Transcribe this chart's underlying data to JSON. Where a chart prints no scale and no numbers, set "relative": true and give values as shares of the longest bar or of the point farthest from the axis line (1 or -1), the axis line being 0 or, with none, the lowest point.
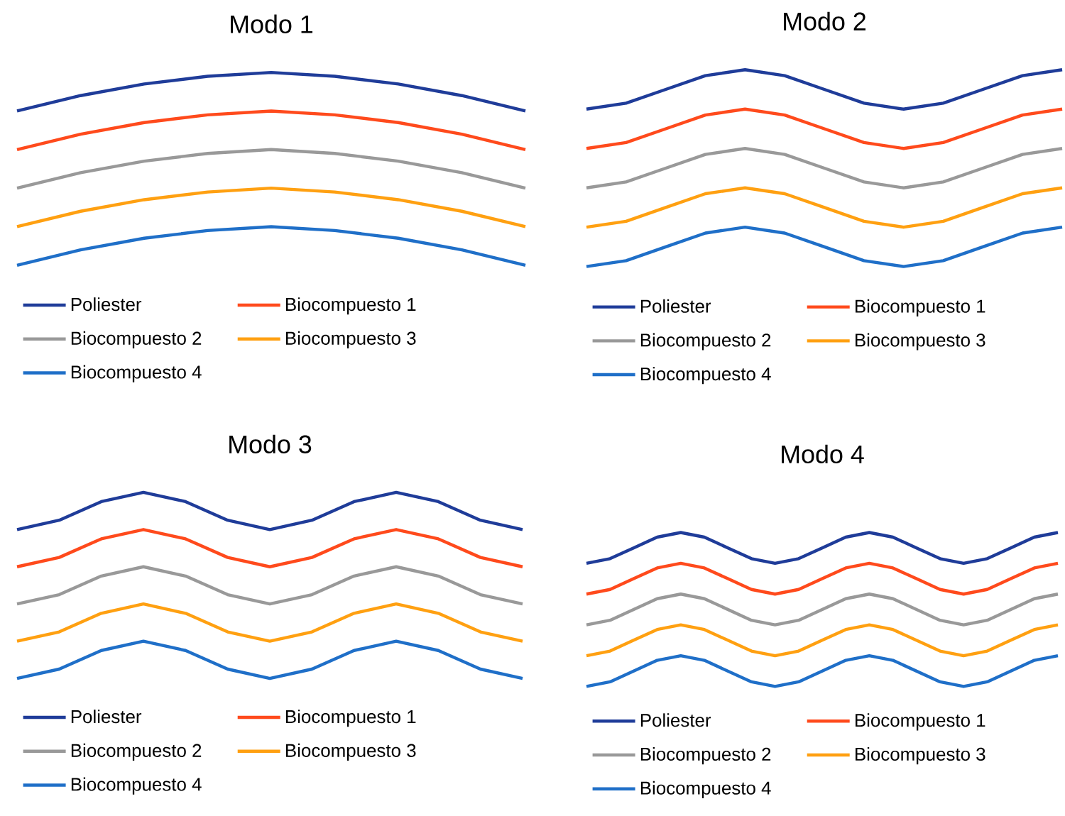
{
  "chart_data": [
    {
      "type": "line",
      "title": "Modo 1",
      "relative": true,
      "legend": "bottom",
      "categories": [
        null,
        null,
        null,
        null,
        null,
        null,
        null,
        null,
        null
      ],
      "series": [
        {
          "name": "Poliester",
          "color": "#1f3c99",
          "values": [
            0.8,
            0.88,
            0.94,
            0.98,
            1,
            0.98,
            0.94,
            0.88,
            0.8
          ]
        },
        {
          "name": "Biocompuesto 1",
          "color": "#ff4a1c",
          "values": [
            0.6,
            0.68,
            0.74,
            0.78,
            0.8,
            0.78,
            0.74,
            0.68,
            0.6
          ]
        },
        {
          "name": "Biocompuesto 2",
          "color": "#999999",
          "values": [
            0.4,
            0.48,
            0.54,
            0.58,
            0.6,
            0.58,
            0.54,
            0.48,
            0.4
          ]
        },
        {
          "name": "Biocompuesto 3",
          "color": "#ffa011",
          "values": [
            0.2,
            0.28,
            0.34,
            0.38,
            0.4,
            0.38,
            0.34,
            0.28,
            0.2
          ]
        },
        {
          "name": "Biocompuesto 4",
          "color": "#1f6fc8",
          "values": [
            0,
            0.08,
            0.14,
            0.18,
            0.2,
            0.18,
            0.14,
            0.08,
            0
          ]
        }
      ]
    },
    {
      "type": "line",
      "title": "Modo 2",
      "relative": true,
      "legend": "bottom",
      "categories": [
        null,
        null,
        null,
        null,
        null,
        null,
        null,
        null,
        null,
        null,
        null,
        null,
        null
      ],
      "series": [
        {
          "name": "Poliester",
          "color": "#1f3c99",
          "values": [
            0.8,
            0.83,
            0.9,
            0.97,
            1,
            0.97,
            0.9,
            0.83,
            0.8,
            0.83,
            0.9,
            0.97,
            1
          ]
        },
        {
          "name": "Biocompuesto 1",
          "color": "#ff4a1c",
          "values": [
            0.6,
            0.63,
            0.7,
            0.77,
            0.8,
            0.77,
            0.7,
            0.63,
            0.6,
            0.63,
            0.7,
            0.77,
            0.8
          ]
        },
        {
          "name": "Biocompuesto 2",
          "color": "#999999",
          "values": [
            0.4,
            0.43,
            0.5,
            0.57,
            0.6,
            0.57,
            0.5,
            0.43,
            0.4,
            0.43,
            0.5,
            0.57,
            0.6
          ]
        },
        {
          "name": "Biocompuesto 3",
          "color": "#ffa011",
          "values": [
            0.2,
            0.23,
            0.3,
            0.37,
            0.4,
            0.37,
            0.3,
            0.23,
            0.2,
            0.23,
            0.3,
            0.37,
            0.4
          ]
        },
        {
          "name": "Biocompuesto 4",
          "color": "#1f6fc8",
          "values": [
            0,
            0.03,
            0.1,
            0.17,
            0.2,
            0.17,
            0.1,
            0.03,
            0,
            0.03,
            0.1,
            0.17,
            0.2
          ]
        }
      ]
    },
    {
      "type": "line",
      "title": "Modo 3",
      "relative": true,
      "legend": "bottom",
      "categories": [
        null,
        null,
        null,
        null,
        null,
        null,
        null,
        null,
        null,
        null,
        null,
        null,
        null
      ],
      "series": [
        {
          "name": "Poliester",
          "color": "#1f3c99",
          "values": [
            0.8,
            0.85,
            0.95,
            1,
            0.95,
            0.85,
            0.8,
            0.85,
            0.95,
            1,
            0.95,
            0.85,
            0.8
          ]
        },
        {
          "name": "Biocompuesto 1",
          "color": "#ff4a1c",
          "values": [
            0.6,
            0.65,
            0.75,
            0.8,
            0.75,
            0.65,
            0.6,
            0.65,
            0.75,
            0.8,
            0.75,
            0.65,
            0.6
          ]
        },
        {
          "name": "Biocompuesto 2",
          "color": "#999999",
          "values": [
            0.4,
            0.45,
            0.55,
            0.6,
            0.55,
            0.45,
            0.4,
            0.45,
            0.55,
            0.6,
            0.55,
            0.45,
            0.4
          ]
        },
        {
          "name": "Biocompuesto 3",
          "color": "#ffa011",
          "values": [
            0.2,
            0.25,
            0.35,
            0.4,
            0.35,
            0.25,
            0.2,
            0.25,
            0.35,
            0.4,
            0.35,
            0.25,
            0.2
          ]
        },
        {
          "name": "Biocompuesto 4",
          "color": "#1f6fc8",
          "values": [
            0,
            0.05,
            0.15,
            0.2,
            0.15,
            0.05,
            0,
            0.05,
            0.15,
            0.2,
            0.15,
            0.05,
            0
          ]
        }
      ]
    },
    {
      "type": "line",
      "title": "Modo 4",
      "relative": true,
      "legend": "bottom",
      "categories": [
        null,
        null,
        null,
        null,
        null,
        null,
        null,
        null,
        null,
        null,
        null,
        null,
        null,
        null,
        null,
        null,
        null,
        null,
        null,
        null,
        null
      ],
      "series": [
        {
          "name": "Poliester",
          "color": "#1f3c99",
          "values": [
            0.8,
            0.83,
            0.9,
            0.97,
            1,
            0.97,
            0.9,
            0.83,
            0.8,
            0.83,
            0.9,
            0.97,
            1,
            0.97,
            0.9,
            0.83,
            0.8,
            0.83,
            0.9,
            0.97,
            1
          ]
        },
        {
          "name": "Biocompuesto 1",
          "color": "#ff4a1c",
          "values": [
            0.6,
            0.63,
            0.7,
            0.77,
            0.8,
            0.77,
            0.7,
            0.63,
            0.6,
            0.63,
            0.7,
            0.77,
            0.8,
            0.77,
            0.7,
            0.63,
            0.6,
            0.63,
            0.7,
            0.77,
            0.8
          ]
        },
        {
          "name": "Biocompuesto 2",
          "color": "#999999",
          "values": [
            0.4,
            0.43,
            0.5,
            0.57,
            0.6,
            0.57,
            0.5,
            0.43,
            0.4,
            0.43,
            0.5,
            0.57,
            0.6,
            0.57,
            0.5,
            0.43,
            0.4,
            0.43,
            0.5,
            0.57,
            0.6
          ]
        },
        {
          "name": "Biocompuesto 3",
          "color": "#ffa011",
          "values": [
            0.2,
            0.23,
            0.3,
            0.37,
            0.4,
            0.37,
            0.3,
            0.23,
            0.2,
            0.23,
            0.3,
            0.37,
            0.4,
            0.37,
            0.3,
            0.23,
            0.2,
            0.23,
            0.3,
            0.37,
            0.4
          ]
        },
        {
          "name": "Biocompuesto 4",
          "color": "#1f6fc8",
          "values": [
            0,
            0.03,
            0.1,
            0.17,
            0.2,
            0.17,
            0.1,
            0.03,
            0,
            0.03,
            0.1,
            0.17,
            0.2,
            0.17,
            0.1,
            0.03,
            0,
            0.03,
            0.1,
            0.17,
            0.2
          ]
        }
      ]
    }
  ]
}
